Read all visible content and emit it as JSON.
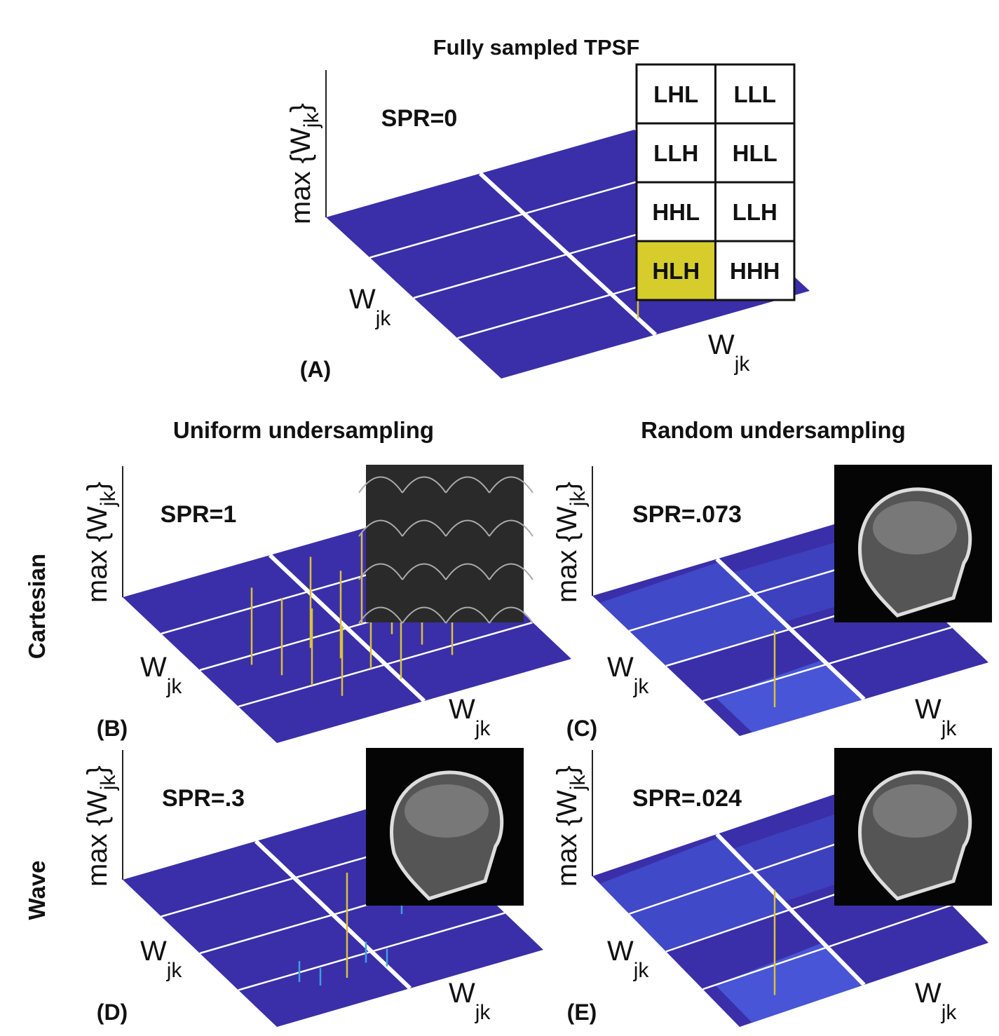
{
  "title": "Fully sampled TPSF",
  "column_titles": [
    "Uniform undersampling",
    "Random undersampling"
  ],
  "row_titles": [
    "Cartesian",
    "Wave"
  ],
  "subband_table": {
    "rows": [
      [
        "LHL",
        "LLL"
      ],
      [
        "LLH",
        "HLL"
      ],
      [
        "HHL",
        "LLH"
      ],
      [
        "HLH",
        "HHH"
      ]
    ],
    "highlighted": "HLH"
  },
  "panels": [
    {
      "label": "(A)",
      "spr": "SPR=0",
      "z_axis": [
        "max {W",
        "jk",
        "}"
      ],
      "y_axis": [
        "W",
        "jk"
      ],
      "x_axis": [
        "W",
        "jk"
      ]
    },
    {
      "label": "(B)",
      "spr": "SPR=1",
      "z_axis": [
        "max {W",
        "jk",
        "}"
      ],
      "y_axis": [
        "W",
        "jk"
      ],
      "x_axis": [
        "W",
        "jk"
      ]
    },
    {
      "label": "(C)",
      "spr": "SPR=.073",
      "z_axis": [
        "max {W",
        "jk",
        "}"
      ],
      "y_axis": [
        "W",
        "jk"
      ],
      "x_axis": [
        "W",
        "jk"
      ]
    },
    {
      "label": "(D)",
      "spr": "SPR=.3",
      "z_axis": [
        "max {W",
        "jk",
        "}"
      ],
      "y_axis": [
        "W",
        "jk"
      ],
      "x_axis": [
        "W",
        "jk"
      ]
    },
    {
      "label": "(E)",
      "spr": "SPR=.024",
      "z_axis": [
        "max {W",
        "jk",
        "}"
      ],
      "y_axis": [
        "W",
        "jk"
      ],
      "x_axis": [
        "W",
        "jk"
      ]
    }
  ]
}
